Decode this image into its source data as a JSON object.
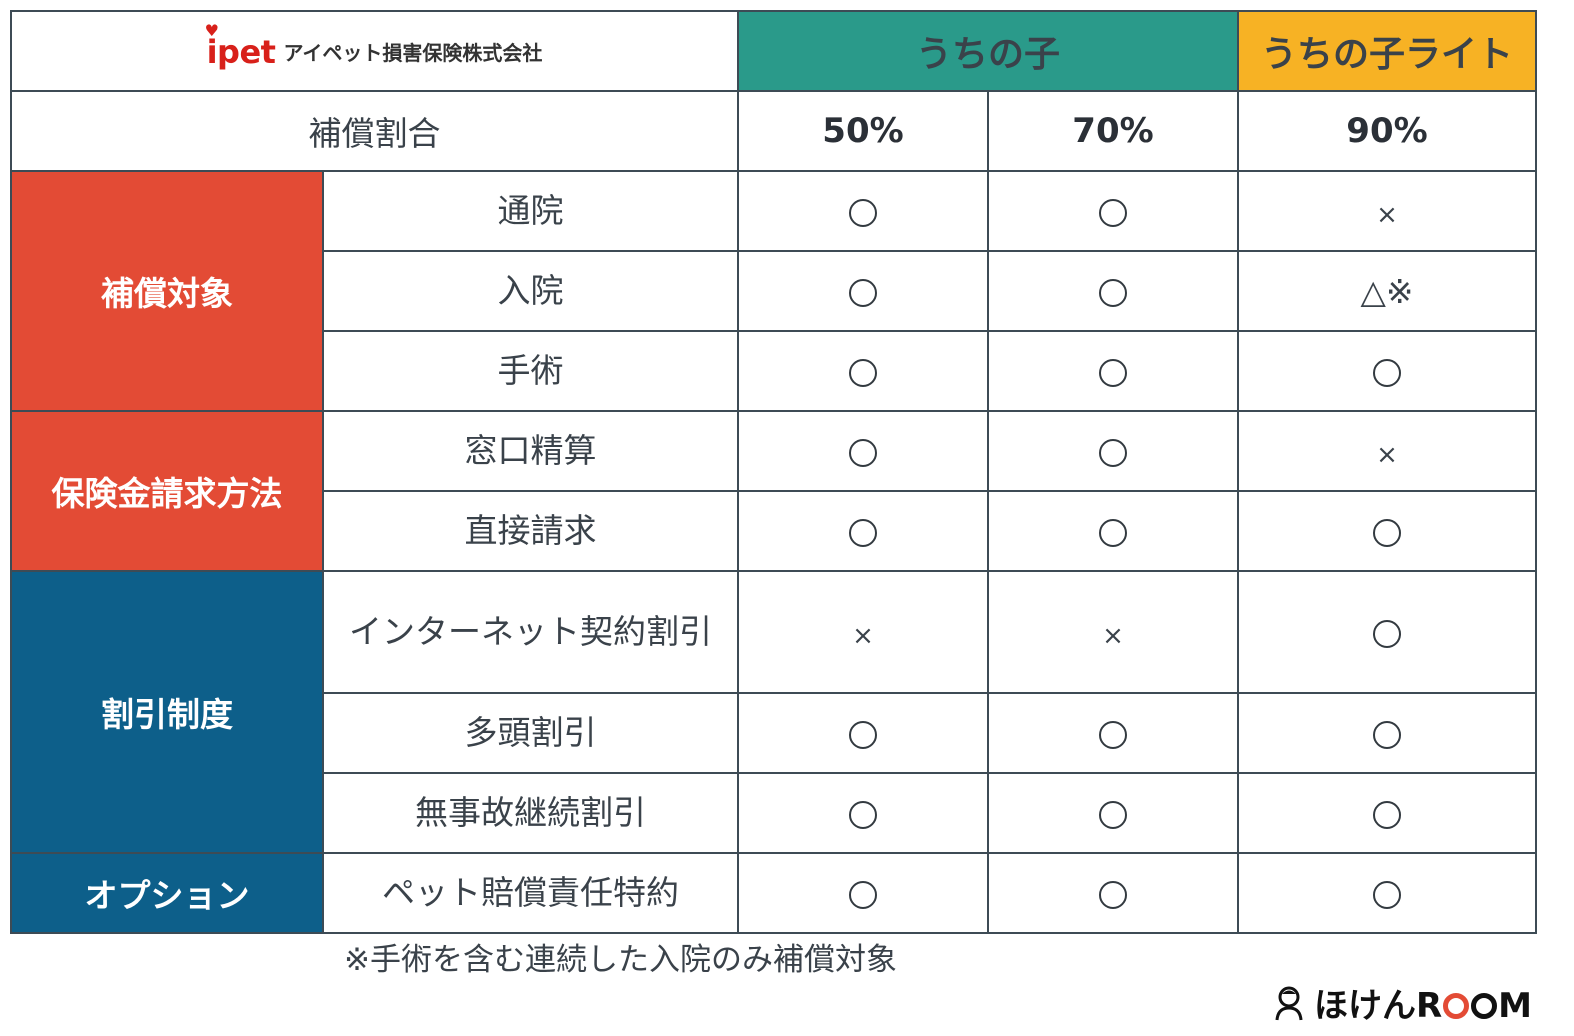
{
  "header": {
    "logo_mark": "ipet",
    "logo_text": "アイペット損害保険株式会社",
    "plan_main": "うちの子",
    "plan_lite": "うちの子ライト"
  },
  "rates": {
    "label": "補償割合",
    "values": [
      "50%",
      "70%",
      "90%"
    ]
  },
  "categories": {
    "coverage": "補償対象",
    "claim": "保険金請求方法",
    "discount": "割引制度",
    "option": "オプション"
  },
  "rows": [
    {
      "item": "通院",
      "marks": [
        "○",
        "○",
        "×"
      ]
    },
    {
      "item": "入院",
      "marks": [
        "○",
        "○",
        "△※"
      ]
    },
    {
      "item": "手術",
      "marks": [
        "○",
        "○",
        "○"
      ]
    },
    {
      "item": "窓口精算",
      "marks": [
        "○",
        "○",
        "×"
      ]
    },
    {
      "item": "直接請求",
      "marks": [
        "○",
        "○",
        "○"
      ]
    },
    {
      "item": "インターネット契約割引",
      "marks": [
        "×",
        "×",
        "○"
      ]
    },
    {
      "item": "多頭割引",
      "marks": [
        "○",
        "○",
        "○"
      ]
    },
    {
      "item": "無事故継続割引",
      "marks": [
        "○",
        "○",
        "○"
      ]
    },
    {
      "item": "ペット賠償責任特約",
      "marks": [
        "○",
        "○",
        "○"
      ]
    }
  ],
  "footnote": "※手術を含む連続した入院のみ補償対象",
  "brand": {
    "prefix": "ほけんR",
    "suffix": "M"
  },
  "colors": {
    "plan_main": "#2a9a8a",
    "plan_lite": "#f7b224",
    "category_red": "#e34b35",
    "category_blue": "#0d5f8a"
  }
}
